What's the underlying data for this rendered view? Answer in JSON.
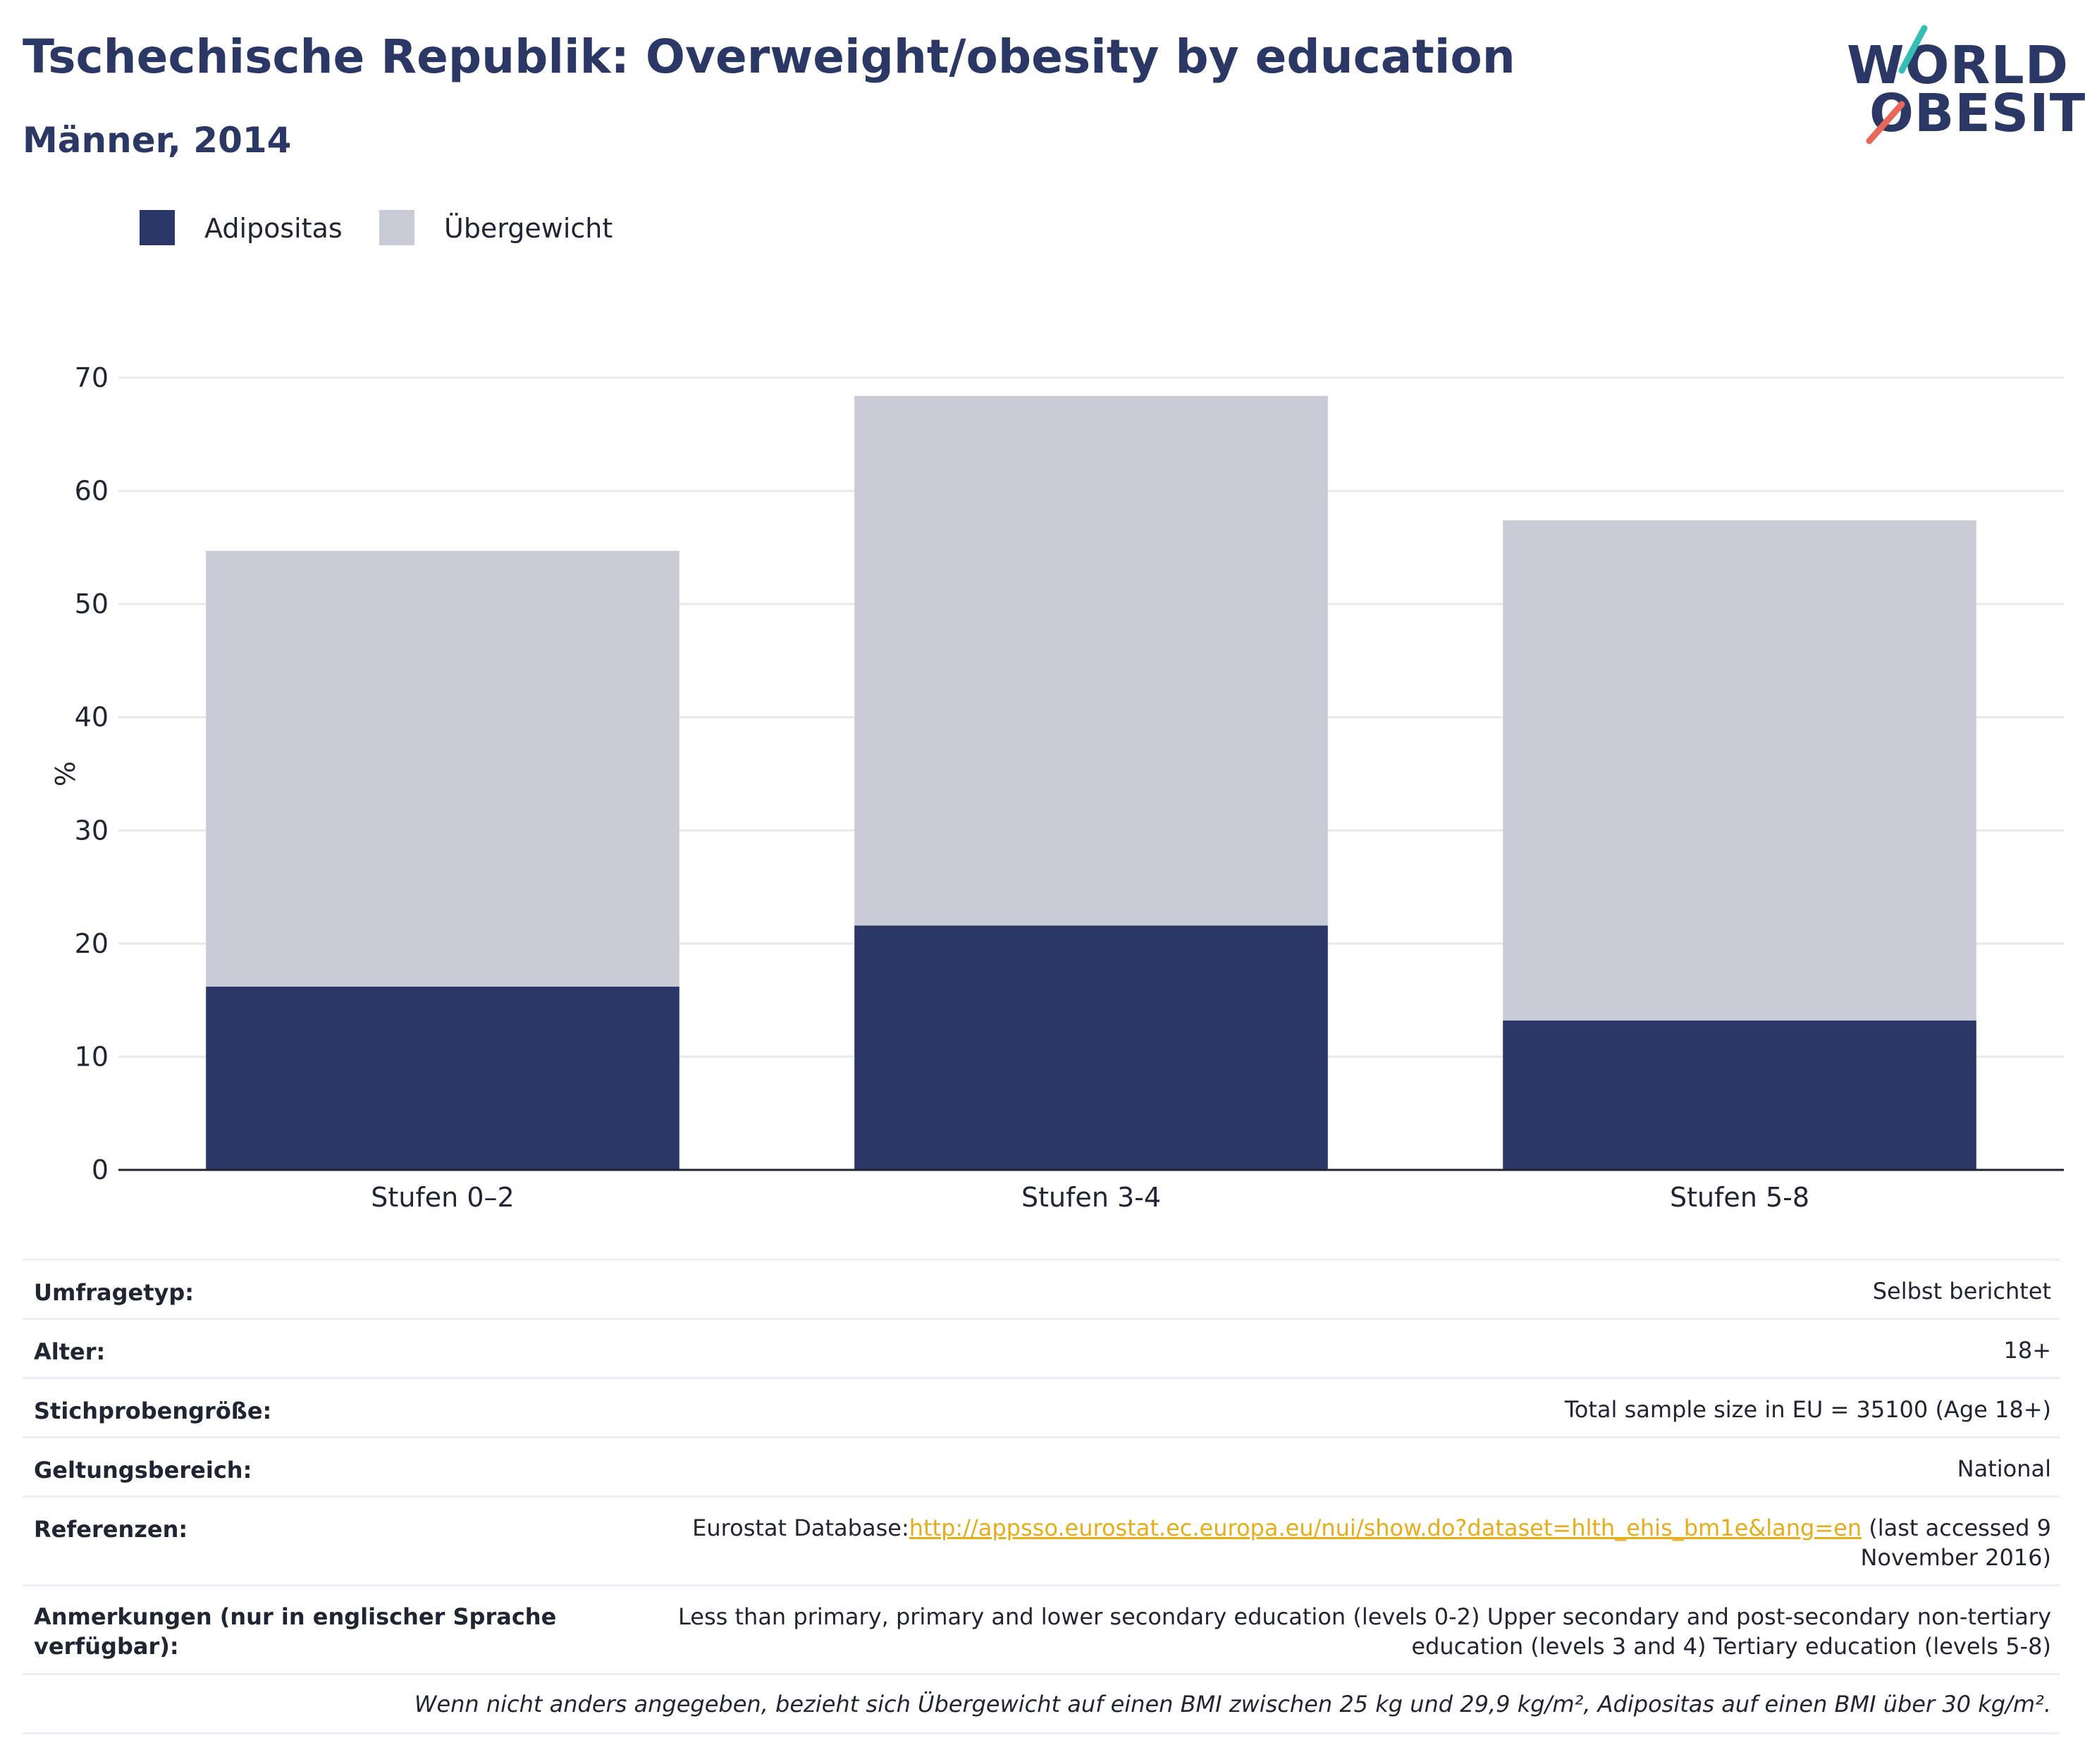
{
  "header": {
    "title": "Tschechische Republik: Overweight/obesity by education",
    "subtitle": "Männer, 2014"
  },
  "logo": {
    "line1": "WORLD",
    "line2": "OBESITY",
    "accent_colors": [
      "#35bdb6",
      "#e8665a"
    ]
  },
  "colors": {
    "obesity": "#2b3766",
    "overweight": "#c9cbd6",
    "gridline": "#e8e9ee",
    "axis": "#1f2533"
  },
  "chart_data": {
    "type": "bar",
    "stacked": true,
    "categories": [
      "Stufen 0–2",
      "Stufen 3-4",
      "Stufen 5-8"
    ],
    "series": [
      {
        "name": "Adipositas",
        "values": [
          16.2,
          21.6,
          13.2
        ]
      },
      {
        "name": "Übergewicht",
        "values": [
          38.5,
          46.8,
          44.2
        ]
      }
    ],
    "ylabel": "%",
    "xlabel": "",
    "ylim": [
      0,
      70
    ],
    "yticks": [
      0,
      10,
      20,
      30,
      40,
      50,
      60,
      70
    ],
    "grid": true,
    "legend_position": "top-left"
  },
  "info": {
    "rows": [
      {
        "label": "Umfragetyp:",
        "value": "Selbst berichtet"
      },
      {
        "label": "Alter:",
        "value": "18+"
      },
      {
        "label": "Stichprobengröße:",
        "value": "Total sample size in EU = 35100 (Age 18+)"
      },
      {
        "label": "Geltungsbereich:",
        "value": "National"
      }
    ],
    "references": {
      "label": "Referenzen:",
      "prefix": "Eurostat Database:",
      "link": "http://appsso.eurostat.ec.europa.eu/nui/show.do?dataset=hlth_ehis_bm1e&lang=en",
      "suffix": " (last accessed 9 November 2016)"
    },
    "notes": {
      "label": "Anmerkungen (nur in englischer Sprache verfügbar):",
      "value": "Less than primary, primary and lower secondary education (levels 0-2) Upper secondary and post-secondary non-tertiary education (levels 3 and 4) Tertiary education (levels 5-8)"
    },
    "footnote": "Wenn nicht anders angegeben, bezieht sich Übergewicht auf einen BMI zwischen 25 kg und 29,9 kg/m², Adipositas auf einen BMI über 30 kg/m²."
  }
}
